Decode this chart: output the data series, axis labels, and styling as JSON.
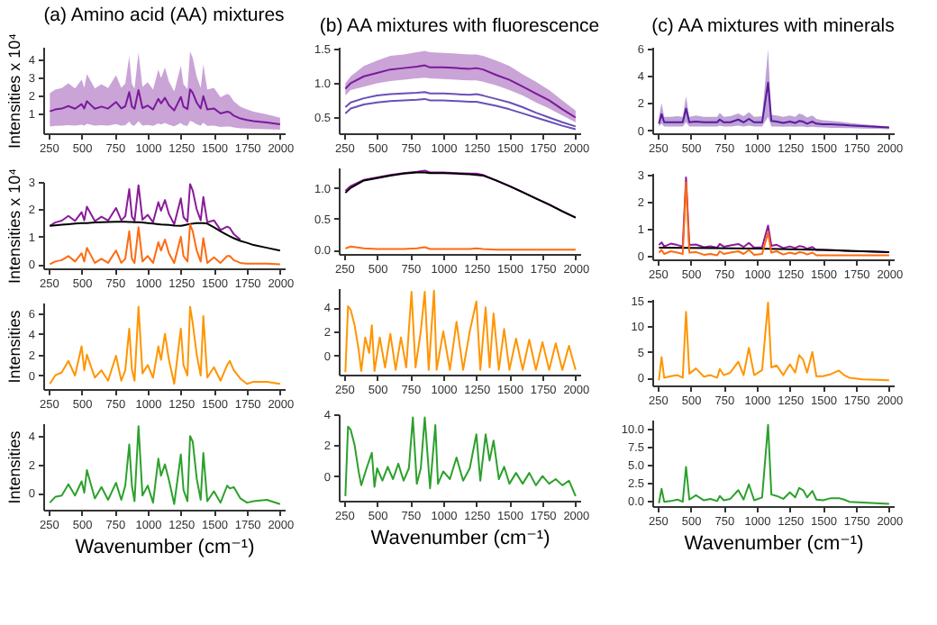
{
  "chart_data": [
    {
      "type": "line",
      "title": "(a) Amino acid (AA) mixtures",
      "ylabel": "Intensities x 10⁴",
      "xlim": [
        210,
        2035
      ],
      "xticks": [
        250,
        500,
        750,
        1000,
        1250,
        1500,
        1750,
        2000
      ],
      "ylim": [
        -0.1,
        4.7
      ],
      "yticks": [
        1,
        2,
        3,
        4
      ],
      "x": [
        260,
        300,
        350,
        400,
        450,
        500,
        520,
        540,
        600,
        650,
        700,
        760,
        800,
        830,
        860,
        880,
        900,
        930,
        960,
        1000,
        1040,
        1080,
        1100,
        1130,
        1160,
        1200,
        1250,
        1270,
        1300,
        1320,
        1340,
        1370,
        1400,
        1420,
        1450,
        1500,
        1550,
        1600,
        1620,
        1650,
        1700,
        1750,
        1800,
        1900,
        2000
      ],
      "series": [
        {
          "color": "#7a1a9a",
          "values": [
            1.12,
            1.22,
            1.27,
            1.41,
            1.26,
            1.52,
            1.28,
            1.68,
            1.26,
            1.38,
            1.27,
            1.64,
            1.28,
            1.4,
            2.19,
            1.39,
            1.26,
            2.3,
            1.3,
            1.44,
            1.22,
            1.81,
            1.56,
            1.87,
            1.46,
            1.17,
            1.92,
            1.38,
            1.24,
            2.34,
            2.14,
            1.6,
            1.28,
            1.96,
            1.22,
            1.28,
            1.0,
            1.1,
            1.06,
            0.88,
            0.72,
            0.64,
            0.58,
            0.5,
            0.4
          ],
          "lower": [
            0.28,
            0.31,
            0.32,
            0.35,
            0.32,
            0.38,
            0.32,
            0.42,
            0.32,
            0.35,
            0.32,
            0.41,
            0.32,
            0.35,
            0.55,
            0.35,
            0.32,
            0.58,
            0.33,
            0.36,
            0.31,
            0.45,
            0.39,
            0.47,
            0.37,
            0.29,
            0.48,
            0.35,
            0.31,
            0.59,
            0.54,
            0.4,
            0.32,
            0.49,
            0.31,
            0.32,
            0.25,
            0.28,
            0.27,
            0.22,
            0.18,
            0.16,
            0.15,
            0.13,
            0.1
          ],
          "upper": [
            2.13,
            2.32,
            2.41,
            2.68,
            2.39,
            2.89,
            2.43,
            3.19,
            2.39,
            2.62,
            2.41,
            3.12,
            2.43,
            2.66,
            4.16,
            2.64,
            2.39,
            4.37,
            2.47,
            2.74,
            2.32,
            3.44,
            2.96,
            3.55,
            2.77,
            2.22,
            3.65,
            2.62,
            2.36,
            4.45,
            4.07,
            3.04,
            2.43,
            3.72,
            2.32,
            2.43,
            1.9,
            2.09,
            2.01,
            1.67,
            1.37,
            1.22,
            1.1,
            0.95,
            0.76
          ]
        }
      ]
    },
    {
      "type": "line",
      "title": "(b) AA mixtures with fluorescence",
      "xlim": [
        210,
        2035
      ],
      "xticks": [
        250,
        500,
        750,
        1000,
        1250,
        1500,
        1750,
        2000
      ],
      "ylim": [
        0.27,
        1.53
      ],
      "yticks": [
        0.5,
        {
          "value": 1,
          "label": "1.0"
        },
        1.5
      ],
      "x": [
        260,
        300,
        400,
        500,
        600,
        700,
        800,
        860,
        900,
        1000,
        1100,
        1200,
        1250,
        1300,
        1400,
        1500,
        1600,
        1700,
        1800,
        1900,
        2000
      ],
      "series": [
        {
          "color": "#6a4fb8",
          "values": [
            0.65,
            0.72,
            0.78,
            0.82,
            0.84,
            0.85,
            0.86,
            0.87,
            0.85,
            0.85,
            0.84,
            0.83,
            0.84,
            0.82,
            0.77,
            0.72,
            0.65,
            0.57,
            0.5,
            0.43,
            0.37
          ]
        },
        {
          "color": "#6a4fb8",
          "values": [
            0.56,
            0.63,
            0.69,
            0.72,
            0.74,
            0.75,
            0.76,
            0.77,
            0.75,
            0.75,
            0.74,
            0.73,
            0.73,
            0.71,
            0.67,
            0.62,
            0.56,
            0.5,
            0.44,
            0.38,
            0.33
          ]
        },
        {
          "color": "#7a1a9a",
          "values": [
            0.92,
            1.0,
            1.1,
            1.15,
            1.2,
            1.22,
            1.24,
            1.26,
            1.23,
            1.23,
            1.22,
            1.21,
            1.22,
            1.2,
            1.12,
            1.05,
            0.95,
            0.85,
            0.75,
            0.62,
            0.5
          ],
          "lower": [
            0.82,
            0.9,
            0.95,
            1.0,
            1.03,
            1.05,
            1.07,
            1.08,
            1.07,
            1.06,
            1.05,
            1.04,
            1.04,
            1.02,
            0.97,
            0.9,
            0.82,
            0.72,
            0.63,
            0.53,
            0.43
          ],
          "upper": [
            1.0,
            1.1,
            1.25,
            1.33,
            1.4,
            1.42,
            1.45,
            1.47,
            1.45,
            1.44,
            1.43,
            1.42,
            1.42,
            1.4,
            1.33,
            1.25,
            1.13,
            1.02,
            0.9,
            0.75,
            0.6
          ]
        }
      ]
    },
    {
      "type": "line",
      "title": "(c) AA mixtures with minerals",
      "xlim": [
        210,
        2035
      ],
      "xticks": [
        250,
        500,
        750,
        1000,
        1250,
        1500,
        1750,
        2000
      ],
      "ylim": [
        -0.2,
        6.1
      ],
      "yticks": [
        0,
        2,
        4,
        6
      ],
      "x": [
        260,
        280,
        300,
        350,
        400,
        440,
        465,
        490,
        540,
        600,
        650,
        700,
        720,
        750,
        800,
        860,
        900,
        940,
        980,
        1040,
        1085,
        1110,
        1150,
        1200,
        1250,
        1290,
        1320,
        1350,
        1380,
        1420,
        1450,
        1500,
        1560,
        1620,
        1660,
        1700,
        1800,
        1900,
        2000
      ],
      "series": [
        {
          "color": "#5a1a9a",
          "values": [
            0.5,
            1.2,
            0.6,
            0.6,
            0.6,
            0.6,
            1.6,
            0.6,
            0.65,
            0.6,
            0.6,
            0.6,
            0.8,
            0.6,
            0.6,
            0.8,
            0.6,
            0.85,
            0.6,
            0.6,
            3.5,
            0.7,
            0.65,
            0.55,
            0.65,
            0.55,
            0.7,
            0.65,
            0.5,
            0.65,
            0.5,
            0.45,
            0.45,
            0.42,
            0.4,
            0.37,
            0.32,
            0.27,
            0.22
          ],
          "lower": [
            0.3,
            0.5,
            0.3,
            0.3,
            0.3,
            0.3,
            0.6,
            0.3,
            0.3,
            0.3,
            0.3,
            0.3,
            0.35,
            0.3,
            0.3,
            0.35,
            0.3,
            0.35,
            0.3,
            0.3,
            1.0,
            0.3,
            0.3,
            0.28,
            0.3,
            0.28,
            0.3,
            0.3,
            0.25,
            0.28,
            0.25,
            0.22,
            0.2,
            0.2,
            0.18,
            0.17,
            0.15,
            0.13,
            0.1
          ],
          "upper": [
            1.0,
            2.0,
            1.0,
            1.0,
            1.05,
            1.0,
            2.5,
            1.0,
            1.1,
            1.0,
            1.0,
            1.0,
            1.3,
            1.0,
            1.05,
            1.25,
            1.05,
            1.35,
            1.0,
            1.05,
            5.9,
            1.15,
            1.1,
            1.0,
            1.1,
            1.0,
            1.25,
            1.15,
            0.95,
            1.1,
            0.85,
            0.75,
            0.7,
            0.65,
            0.6,
            0.55,
            0.45,
            0.38,
            0.3
          ]
        }
      ]
    },
    {
      "type": "line",
      "ylabel": "Intensities x 10⁴",
      "xlim": [
        210,
        2035
      ],
      "xticks": [
        250,
        500,
        750,
        1000,
        1250,
        1500,
        1750,
        2000
      ],
      "ylim": [
        -0.15,
        3.0
      ],
      "yticks": [
        0,
        1,
        2,
        3
      ],
      "x": [
        260,
        300,
        350,
        400,
        450,
        500,
        520,
        540,
        600,
        650,
        700,
        760,
        800,
        830,
        860,
        880,
        900,
        930,
        960,
        1000,
        1040,
        1080,
        1100,
        1130,
        1160,
        1200,
        1250,
        1270,
        1300,
        1320,
        1340,
        1370,
        1400,
        1420,
        1450,
        1500,
        1550,
        1600,
        1620,
        1650,
        1700,
        1750,
        1800,
        1900,
        2000
      ],
      "series": [
        {
          "color": "#8b1a9a",
          "values": [
            1.4,
            1.52,
            1.59,
            1.76,
            1.58,
            1.9,
            1.6,
            2.1,
            1.57,
            1.73,
            1.59,
            2.05,
            1.6,
            1.75,
            2.74,
            1.74,
            1.58,
            2.88,
            1.62,
            1.8,
            1.53,
            2.26,
            1.95,
            2.34,
            1.83,
            1.46,
            2.4,
            1.72,
            1.55,
            2.92,
            2.68,
            2.0,
            1.6,
            2.45,
            1.53,
            1.6,
            1.25,
            1.37,
            1.32,
            1.1,
            0.9,
            null,
            null,
            null,
            null
          ]
        },
        {
          "color": "#000000",
          "values": [
            1.4,
            1.42,
            1.44,
            1.46,
            1.48,
            1.5,
            1.5,
            1.5,
            1.52,
            1.53,
            1.54,
            1.55,
            1.55,
            1.55,
            1.54,
            1.54,
            1.53,
            1.53,
            1.52,
            1.5,
            1.48,
            1.46,
            1.45,
            1.44,
            1.43,
            1.41,
            1.4,
            1.42,
            1.45,
            1.47,
            1.48,
            1.5,
            1.5,
            1.5,
            1.48,
            1.35,
            1.2,
            1.07,
            1.02,
            0.95,
            0.85,
            0.78,
            0.7,
            0.6,
            0.5
          ]
        },
        {
          "color": "#ff6a10",
          "values": [
            0,
            0.1,
            0.15,
            0.3,
            0.1,
            0.4,
            0.1,
            0.6,
            0.05,
            0.2,
            0.05,
            0.5,
            0.05,
            0.2,
            1.2,
            0.2,
            0.05,
            1.35,
            0.1,
            0.3,
            0.05,
            0.8,
            0.5,
            0.9,
            0.4,
            0.05,
            1.0,
            0.3,
            0.1,
            1.45,
            1.2,
            0.5,
            0.1,
            0.95,
            0.05,
            0.25,
            0.05,
            0.3,
            0.3,
            0.15,
            0.05,
            0.02,
            0.02,
            0.02,
            0
          ]
        }
      ]
    },
    {
      "type": "line",
      "xlim": [
        210,
        2035
      ],
      "xticks": [
        250,
        500,
        750,
        1000,
        1250,
        1500,
        1750,
        2000
      ],
      "ylim": [
        -0.07,
        1.33
      ],
      "yticks": [
        {
          "value": 0,
          "label": "0.0"
        },
        0.5,
        {
          "value": 1,
          "label": "1.0"
        }
      ],
      "x": [
        260,
        300,
        400,
        500,
        600,
        700,
        800,
        860,
        900,
        1000,
        1100,
        1200,
        1250,
        1300,
        1400,
        1500,
        1600,
        1700,
        1800,
        1900,
        2000
      ],
      "series": [
        {
          "color": "#8b1a9a",
          "values": [
            0.95,
            1.03,
            1.13,
            1.17,
            1.21,
            1.24,
            1.26,
            1.28,
            1.25,
            1.25,
            1.24,
            1.23,
            1.23,
            1.21,
            1.12,
            1.03,
            0.93,
            0.83,
            0.73,
            0.62,
            0.52
          ]
        },
        {
          "color": "#000000",
          "values": [
            0.92,
            1.0,
            1.12,
            1.16,
            1.2,
            1.23,
            1.25,
            1.25,
            1.24,
            1.24,
            1.23,
            1.22,
            1.21,
            1.2,
            1.12,
            1.03,
            0.93,
            0.83,
            0.73,
            0.62,
            0.52
          ]
        },
        {
          "color": "#ff6a10",
          "values": [
            0.02,
            0.05,
            0.02,
            0.01,
            0.01,
            0.01,
            0.02,
            0.04,
            0.01,
            0.01,
            0.01,
            0.01,
            0.02,
            0.01,
            0,
            0,
            0,
            0,
            0,
            0,
            0
          ]
        }
      ]
    },
    {
      "type": "line",
      "xlim": [
        210,
        2035
      ],
      "xticks": [
        250,
        500,
        750,
        1000,
        1250,
        1500,
        1750,
        2000
      ],
      "ylim": [
        -0.15,
        3.05
      ],
      "yticks": [
        0,
        1,
        2,
        3
      ],
      "x": [
        260,
        280,
        300,
        350,
        400,
        440,
        465,
        490,
        540,
        600,
        650,
        700,
        720,
        750,
        800,
        860,
        900,
        940,
        980,
        1040,
        1085,
        1110,
        1150,
        1200,
        1250,
        1290,
        1320,
        1350,
        1380,
        1420,
        1450,
        1500,
        1560,
        1620,
        1660,
        1700,
        1800,
        1900,
        2000
      ],
      "series": [
        {
          "color": "#8b1a9a",
          "values": [
            0.38,
            0.48,
            0.33,
            0.43,
            0.38,
            0.33,
            2.88,
            0.38,
            0.4,
            0.3,
            0.33,
            0.28,
            0.42,
            0.32,
            0.37,
            0.42,
            0.31,
            0.46,
            0.28,
            0.3,
            1.1,
            0.35,
            0.39,
            0.27,
            0.33,
            0.27,
            0.34,
            0.32,
            0.24,
            0.31,
            0.2,
            0.2,
            0.19,
            0.18,
            0.17,
            0.16,
            0.15,
            0.13,
            0.12
          ]
        },
        {
          "color": "#000000",
          "x": [
            260,
            1000,
            1500,
            2000
          ],
          "values": [
            0.28,
            0.25,
            0.2,
            0.12
          ]
        },
        {
          "color": "#ff6a10",
          "values": [
            0.1,
            0.2,
            0.05,
            0.15,
            0.1,
            0.05,
            2.7,
            0.1,
            0.12,
            0.02,
            0.05,
            0,
            0.15,
            0.05,
            0.1,
            0.15,
            0.05,
            0.2,
            0.02,
            0.05,
            0.85,
            0.1,
            0.15,
            0.03,
            0.1,
            0.05,
            0.12,
            0.1,
            0.03,
            0.1,
            0,
            0,
            0,
            0,
            0,
            0,
            0,
            0,
            0
          ]
        }
      ]
    },
    {
      "type": "line",
      "ylabel": "Intensities",
      "xlim": [
        210,
        2035
      ],
      "xticks": [
        250,
        500,
        750,
        1000,
        1250,
        1500,
        1750,
        2000
      ],
      "ylim": [
        -1.3,
        7.0
      ],
      "yticks": [
        0,
        2,
        4,
        6
      ],
      "x": [
        260,
        300,
        350,
        400,
        450,
        500,
        520,
        540,
        600,
        650,
        700,
        760,
        800,
        830,
        860,
        880,
        900,
        930,
        960,
        1000,
        1040,
        1080,
        1100,
        1130,
        1160,
        1200,
        1250,
        1270,
        1300,
        1320,
        1340,
        1370,
        1400,
        1420,
        1450,
        1500,
        1550,
        1600,
        1620,
        1650,
        1700,
        1750,
        1800,
        1900,
        2000
      ],
      "series": [
        {
          "color": "#ff9500",
          "values": [
            -0.8,
            0,
            0.3,
            1.4,
            0,
            2.8,
            0.5,
            2.0,
            -0.2,
            0.5,
            -0.5,
            1.9,
            -0.5,
            0.5,
            4.5,
            0.6,
            -0.5,
            6.6,
            0.2,
            1.0,
            -0.2,
            2.8,
            1.5,
            4.0,
            1.5,
            -0.8,
            4.5,
            1.0,
            0,
            6.6,
            5.0,
            2.0,
            0,
            5.7,
            -0.2,
            0.8,
            -0.5,
            1.0,
            1.4,
            0.5,
            -0.3,
            -0.8,
            -0.6,
            -0.6,
            -0.8
          ]
        }
      ]
    },
    {
      "type": "line",
      "xlim": [
        210,
        2035
      ],
      "xticks": [
        250,
        500,
        750,
        1000,
        1250,
        1500,
        1750,
        2000
      ],
      "ylim": [
        -1.6,
        5.6
      ],
      "yticks": [
        0,
        2,
        4
      ],
      "x": [
        260,
        280,
        300,
        330,
        360,
        380,
        410,
        440,
        460,
        480,
        520,
        560,
        600,
        640,
        680,
        720,
        760,
        790,
        830,
        860,
        890,
        930,
        950,
        1000,
        1050,
        1100,
        1150,
        1200,
        1250,
        1280,
        1320,
        1350,
        1380,
        1420,
        1460,
        1500,
        1550,
        1600,
        1650,
        1700,
        1750,
        1800,
        1850,
        1900,
        1950,
        2000
      ],
      "series": [
        {
          "color": "#ff9500",
          "values": [
            -1.4,
            4.1,
            3.8,
            2.5,
            0.5,
            -1.3,
            1.5,
            0.2,
            2.5,
            -1.3,
            1.5,
            -1.0,
            1.8,
            -1.2,
            1.5,
            -1.0,
            5.3,
            -1.0,
            2.0,
            5.3,
            -1.2,
            5.4,
            -1.2,
            2.0,
            -1.2,
            2.8,
            -1.2,
            2.0,
            4.5,
            -1.2,
            4.0,
            -1.0,
            3.5,
            -1.2,
            2.2,
            -1.2,
            1.4,
            -1.2,
            1.3,
            -1.2,
            1.1,
            -1.2,
            1.0,
            -1.2,
            0.8,
            -1.2
          ]
        }
      ]
    },
    {
      "type": "line",
      "xlim": [
        210,
        2035
      ],
      "xticks": [
        250,
        500,
        750,
        1000,
        1250,
        1500,
        1750,
        2000
      ],
      "ylim": [
        -1.5,
        15.3
      ],
      "yticks": [
        0,
        5,
        10,
        15
      ],
      "x": [
        260,
        280,
        300,
        350,
        400,
        440,
        465,
        490,
        540,
        600,
        650,
        700,
        720,
        750,
        800,
        860,
        900,
        940,
        980,
        1040,
        1085,
        1110,
        1150,
        1200,
        1250,
        1290,
        1320,
        1350,
        1380,
        1420,
        1450,
        1500,
        1560,
        1620,
        1660,
        1700,
        1800,
        1900,
        2000
      ],
      "series": [
        {
          "color": "#ff9500",
          "values": [
            -0.5,
            4.0,
            0,
            0.3,
            0.5,
            0,
            12.8,
            0.8,
            1.8,
            0.2,
            0.5,
            0,
            1.7,
            0.5,
            1.0,
            3.1,
            0.5,
            5.8,
            0.5,
            1.5,
            14.6,
            2.0,
            2.4,
            0.5,
            2.6,
            1.0,
            4.4,
            3.5,
            1.0,
            5.0,
            0.3,
            0.3,
            0.7,
            1.4,
            0.5,
            0,
            -0.3,
            -0.4,
            -0.5
          ]
        }
      ]
    },
    {
      "type": "line",
      "ylabel": "Intensities",
      "xlabel": "Wavenumber (cm⁻¹)",
      "xlim": [
        210,
        2035
      ],
      "xticks": [
        250,
        500,
        750,
        1000,
        1250,
        1500,
        1750,
        2000
      ],
      "ylim": [
        -1.2,
        4.9
      ],
      "yticks": [
        0,
        2,
        4
      ],
      "x": [
        260,
        300,
        350,
        400,
        450,
        500,
        520,
        540,
        600,
        650,
        700,
        760,
        800,
        830,
        860,
        880,
        900,
        930,
        960,
        1000,
        1040,
        1080,
        1100,
        1130,
        1160,
        1200,
        1250,
        1270,
        1300,
        1320,
        1340,
        1370,
        1400,
        1420,
        1450,
        1500,
        1550,
        1600,
        1620,
        1650,
        1700,
        1750,
        1800,
        1900,
        2000
      ],
      "series": [
        {
          "color": "#2ca02c",
          "values": [
            -0.7,
            -0.3,
            -0.2,
            0.6,
            -0.2,
            0.8,
            0,
            1.6,
            -0.4,
            0.4,
            -0.5,
            0.7,
            -0.5,
            0.5,
            3.4,
            0.5,
            -0.6,
            4.7,
            -0.2,
            0.5,
            -0.7,
            2.4,
            1.2,
            2.0,
            0.9,
            -0.8,
            2.7,
            0.2,
            -0.6,
            4.0,
            3.6,
            1.0,
            -0.5,
            2.8,
            -0.6,
            0.1,
            -0.7,
            0.5,
            0.3,
            0.4,
            -0.4,
            -0.7,
            -0.6,
            -0.5,
            -0.8
          ]
        }
      ]
    },
    {
      "type": "line",
      "xlabel": "Wavenumber (cm⁻¹)",
      "xlim": [
        210,
        2035
      ],
      "xticks": [
        250,
        500,
        750,
        1000,
        1250,
        1500,
        1750,
        2000
      ],
      "ylim": [
        -1.6,
        4.0
      ],
      "yticks": [
        0,
        2,
        4
      ],
      "x": [
        260,
        280,
        300,
        330,
        360,
        380,
        420,
        460,
        480,
        500,
        540,
        580,
        620,
        660,
        700,
        740,
        770,
        800,
        830,
        860,
        900,
        940,
        960,
        1000,
        1050,
        1100,
        1150,
        1200,
        1250,
        1280,
        1320,
        1350,
        1380,
        1420,
        1460,
        1500,
        1550,
        1600,
        1650,
        1700,
        1750,
        1800,
        1850,
        1900,
        1950,
        2000
      ],
      "series": [
        {
          "color": "#2ca02c",
          "values": [
            -1.3,
            3.2,
            3.0,
            2.0,
            0.3,
            -0.6,
            0.5,
            1.5,
            -0.7,
            0.5,
            -0.3,
            0.6,
            -0.2,
            0.8,
            -0.3,
            0.5,
            3.8,
            -0.5,
            0.5,
            3.8,
            -0.8,
            3.3,
            -0.5,
            0.3,
            -0.2,
            1.2,
            -0.3,
            0.5,
            2.7,
            -0.3,
            2.7,
            1.0,
            2.3,
            -0.2,
            0.6,
            -0.5,
            0.2,
            -0.5,
            0.2,
            -0.6,
            0,
            -0.5,
            -0.2,
            -0.6,
            -0.3,
            -1.3
          ]
        }
      ]
    },
    {
      "type": "line",
      "xlabel": "Wavenumber (cm⁻¹)",
      "xlim": [
        210,
        2035
      ],
      "xticks": [
        250,
        500,
        750,
        1000,
        1250,
        1500,
        1750,
        2000
      ],
      "ylim": [
        -0.7,
        11.2
      ],
      "yticks": [
        {
          "value": 0,
          "label": "0.0"
        },
        {
          "value": 2.5,
          "label": "2.5"
        },
        {
          "value": 5,
          "label": "5.0"
        },
        {
          "value": 7.5,
          "label": "7.5"
        },
        {
          "value": 10,
          "label": "10.0"
        }
      ],
      "x": [
        260,
        280,
        300,
        350,
        400,
        440,
        465,
        490,
        540,
        600,
        650,
        700,
        720,
        750,
        800,
        860,
        900,
        940,
        980,
        1040,
        1085,
        1110,
        1150,
        1200,
        1250,
        1290,
        1320,
        1350,
        1380,
        1420,
        1450,
        1500,
        1560,
        1620,
        1660,
        1700,
        1800,
        1900,
        2000
      ],
      "series": [
        {
          "color": "#2ca02c",
          "values": [
            -0.3,
            1.7,
            -0.1,
            0,
            0.2,
            -0.1,
            4.7,
            0.2,
            0.8,
            0.1,
            0.3,
            0,
            0.7,
            0.1,
            0.3,
            1.5,
            0.2,
            2.3,
            0.1,
            0.5,
            10.5,
            0.9,
            0.7,
            0.3,
            1.2,
            0.5,
            1.8,
            1.5,
            0.5,
            1.4,
            0.2,
            0.1,
            0.4,
            0.4,
            0.2,
            -0.1,
            -0.2,
            -0.3,
            -0.4
          ]
        }
      ]
    }
  ]
}
